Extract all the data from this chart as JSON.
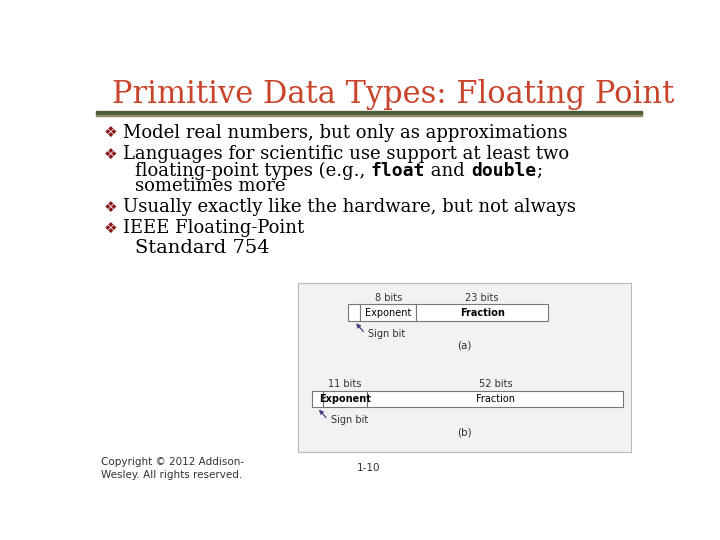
{
  "title": "Primitive Data Types: Floating Point",
  "title_color": "#C8442A",
  "title_fontsize": 22,
  "bg_color": "#FFFFFF",
  "bullet_color": "#8B1A1A",
  "bullet_char": "❖",
  "body_color": "#000000",
  "body_fontsize": 13,
  "bullet1": "Model real numbers, but only as approximations",
  "bullet2_line1": "Languages for scientific use support at least two",
  "bullet2_line2_pre": "floating-point types (e.g., ",
  "bullet2_line2_mono1": "float",
  "bullet2_line2_mid": " and ",
  "bullet2_line2_mono2": "double",
  "bullet2_line2_post": ";",
  "bullet2_line3": "sometimes more",
  "bullet3": "Usually exactly like the hardware, but not always",
  "bullet4_line1": "IEEE Floating-Point",
  "bullet4_line2": "Standard 754",
  "footer_left": "Copyright © 2012 Addison-\nWesley. All rights reserved.",
  "footer_center": "1-10",
  "footer_fontsize": 7.5,
  "sep_color1": "#4A5E3A",
  "sep_color2": "#8B8B6B"
}
